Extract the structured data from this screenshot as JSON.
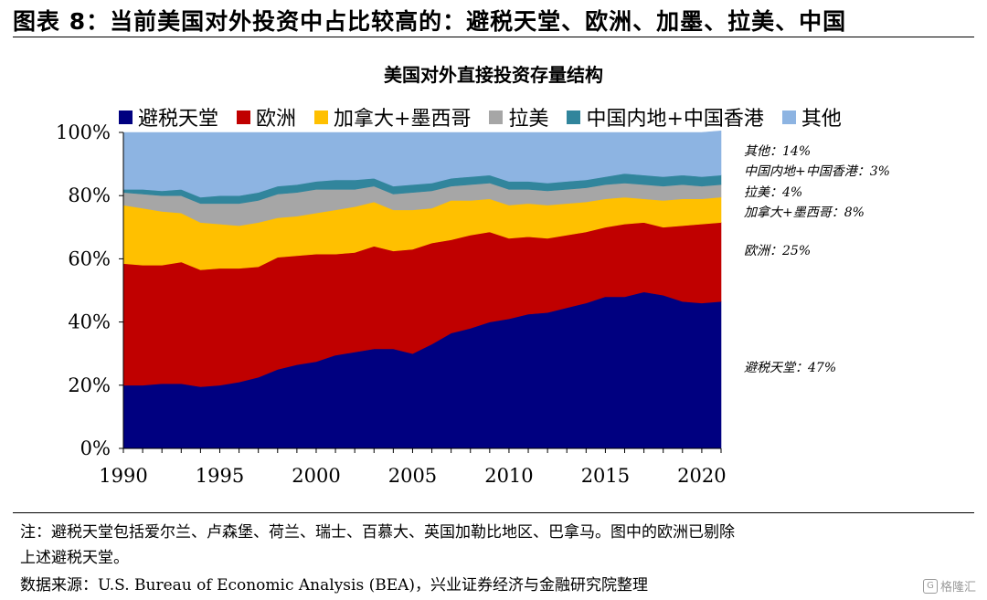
{
  "figure_title": "图表 8：当前美国对外投资中占比较高的：避税天堂、欧洲、加墨、拉美、中国",
  "chart_data": {
    "type": "area",
    "title": "美国对外直接投资存量结构",
    "x": [
      1990,
      1991,
      1992,
      1993,
      1994,
      1995,
      1996,
      1997,
      1998,
      1999,
      2000,
      2001,
      2002,
      2003,
      2004,
      2005,
      2006,
      2007,
      2008,
      2009,
      2010,
      2011,
      2012,
      2013,
      2014,
      2015,
      2016,
      2017,
      2018,
      2019,
      2020,
      2021
    ],
    "ylim": [
      0,
      100
    ],
    "yticks": [
      "0%",
      "20%",
      "40%",
      "60%",
      "80%",
      "100%"
    ],
    "xticks": [
      1990,
      1995,
      2000,
      2005,
      2010,
      2015,
      2020
    ],
    "stacked": true,
    "grid": false,
    "legend_position": "top",
    "series": [
      {
        "name": "避税天堂",
        "color": "#000080",
        "values": [
          20,
          20,
          20.5,
          20.5,
          19.5,
          20,
          21,
          22.5,
          25,
          26.5,
          27.5,
          29.5,
          30.5,
          31.5,
          31.5,
          30,
          33,
          36.5,
          38,
          40,
          41,
          42.5,
          43,
          44.5,
          46,
          48,
          48,
          49.5,
          48.5,
          46.5,
          46,
          46.5
        ]
      },
      {
        "name": "欧洲",
        "color": "#C00000",
        "values": [
          38.5,
          38,
          37.5,
          38.5,
          37,
          37,
          36,
          35,
          35.5,
          34.5,
          34,
          32,
          31.5,
          32.5,
          31,
          33,
          32,
          29.5,
          29.5,
          28.5,
          25.5,
          24.5,
          23.5,
          23,
          22.5,
          22,
          23,
          22,
          21.5,
          24,
          25,
          25
        ]
      },
      {
        "name": "加拿大+墨西哥",
        "color": "#FFC000",
        "values": [
          18.5,
          18,
          17,
          15.5,
          15,
          14,
          13.5,
          14,
          12.5,
          12.5,
          13,
          14,
          14.5,
          14,
          13,
          12.5,
          11,
          12.5,
          11,
          10.5,
          10.5,
          10.5,
          10.5,
          10,
          9.5,
          9,
          8.5,
          7.5,
          8.5,
          8.5,
          8,
          8
        ]
      },
      {
        "name": "拉美",
        "color": "#A6A6A6",
        "values": [
          4,
          4.5,
          5,
          5.5,
          6,
          6.5,
          7,
          7,
          7.5,
          7.5,
          7.5,
          6.5,
          5.5,
          5,
          5,
          5.5,
          5.5,
          4.5,
          5,
          5,
          5,
          4.5,
          4.5,
          4.5,
          4.5,
          4.5,
          4.5,
          4.5,
          4.5,
          4.5,
          4,
          4
        ]
      },
      {
        "name": "中国内地+中国香港",
        "color": "#31859C",
        "values": [
          1,
          1.5,
          1.5,
          2,
          2,
          2.5,
          2.5,
          2.5,
          2.5,
          2.5,
          2.5,
          3,
          3,
          2.5,
          2.5,
          2.5,
          2.5,
          2.5,
          2.5,
          2.5,
          2.5,
          2.5,
          2.5,
          2.5,
          2.5,
          2.5,
          3,
          3,
          3,
          3,
          3,
          3
        ]
      },
      {
        "name": "其他",
        "color": "#8DB4E2",
        "values": [
          18,
          18,
          18.5,
          18,
          20.5,
          20,
          20,
          19,
          17,
          16.5,
          15.5,
          15,
          15,
          14.5,
          17,
          16.5,
          16,
          14.5,
          14,
          13.5,
          15.5,
          15.5,
          16,
          15.5,
          15,
          14,
          13,
          13.5,
          14,
          13.5,
          14,
          14
        ]
      }
    ],
    "annotations": [
      {
        "text": "其他：14%"
      },
      {
        "text": "中国内地+中国香港：3%"
      },
      {
        "text": "拉美：4%"
      },
      {
        "text": "加拿大+墨西哥：8%"
      },
      {
        "text": "欧洲：25%"
      },
      {
        "text": "避税天堂：47%"
      }
    ]
  },
  "notes": {
    "line1": "注：避税天堂包括爱尔兰、卢森堡、荷兰、瑞士、百慕大、英国加勒比地区、巴拿马。图中的欧洲已剔除",
    "line2": "上述避税天堂。",
    "source": "数据来源：U.S. Bureau of Economic Analysis (BEA)，兴业证券经济与金融研究院整理"
  },
  "watermark": {
    "logo": "G",
    "text": "格隆汇"
  }
}
